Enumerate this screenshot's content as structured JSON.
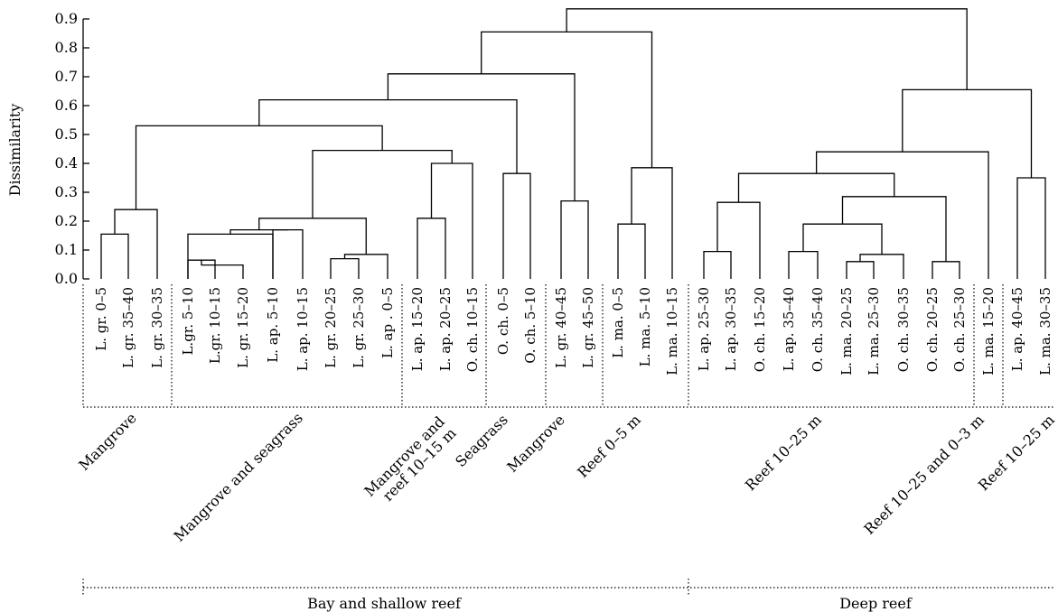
{
  "chart_data": {
    "type": "dendrogram",
    "title": "",
    "xlabel": "",
    "ylabel": "Dissimilarity",
    "ylim": [
      0,
      0.9
    ],
    "yticks": [
      "0.0",
      "0.1",
      "0.2",
      "0.3",
      "0.4",
      "0.5",
      "0.6",
      "0.7",
      "0.8",
      "0.9"
    ],
    "leaves": [
      "L. gr. 0–5",
      "L. gr. 35–40",
      "L. gr. 30–35",
      "L.gr. 5–10",
      "L.gr. 10–15",
      "L. gr. 15–20",
      "L. ap. 5–10",
      "L. ap. 10–15",
      "L. gr. 20–25",
      "L. gr. 25–30",
      "L. ap . 0–5",
      "L. ap. 15–20",
      "L. ap. 20–25",
      "O. ch. 10–15",
      "O. ch. 0–5",
      "O. ch. 5–10",
      "L. gr. 40–45",
      "L. gr. 45–50",
      "L. ma. 0–5",
      "L. ma. 5–10",
      "L. ma. 10–15",
      "L. ap. 25–30",
      "L. ap. 30–35",
      "O. ch. 15–20",
      "L. ap. 35–40",
      "O. ch. 35–40",
      "L. ma. 20–25",
      "L. ma. 25–30",
      "O. ch. 30–35",
      "O. ch. 20–25",
      "O. ch. 25–30",
      "L. ma. 15–20",
      "L. ap. 40–45",
      "L. ma. 30–35"
    ],
    "merges": [
      {
        "a": "L3",
        "b": "L4",
        "height": 0.065
      },
      {
        "a": "L5",
        "b": "M0",
        "height": 0.048
      },
      {
        "a": "L8",
        "b": "L9",
        "height": 0.07
      },
      {
        "a": "L10",
        "b": "M2",
        "height": 0.085
      },
      {
        "a": "L26",
        "b": "L27",
        "height": 0.06
      },
      {
        "a": "L29",
        "b": "L30",
        "height": 0.06
      },
      {
        "a": "L28",
        "b": "M4",
        "height": 0.085
      },
      {
        "a": "L21",
        "b": "L22",
        "height": 0.095
      },
      {
        "a": "L24",
        "b": "L25",
        "height": 0.095
      },
      {
        "a": "L0",
        "b": "L1",
        "height": 0.155
      },
      {
        "a": "L3",
        "b": "L6",
        "height": 0.155
      },
      {
        "a": "L6",
        "b": "L7",
        "height": 0.17
      },
      {
        "a": "M10",
        "b": "M11",
        "height": 0.17
      },
      {
        "a": "M12",
        "b": "M3",
        "height": 0.21
      },
      {
        "a": "L11",
        "b": "L12",
        "height": 0.21
      },
      {
        "a": "L18",
        "b": "L19",
        "height": 0.19
      },
      {
        "a": "M8",
        "b": "M6",
        "height": 0.19
      },
      {
        "a": "M9",
        "b": "L2",
        "height": 0.24
      },
      {
        "a": "M7",
        "b": "L23",
        "height": 0.265
      },
      {
        "a": "L16",
        "b": "L17",
        "height": 0.27
      },
      {
        "a": "M16",
        "b": "M5",
        "height": 0.285
      },
      {
        "a": "L32",
        "b": "L33",
        "height": 0.35
      },
      {
        "a": "L14",
        "b": "L15",
        "height": 0.365
      },
      {
        "a": "M18",
        "b": "M20",
        "height": 0.365
      },
      {
        "a": "M14",
        "b": "L13",
        "height": 0.4
      },
      {
        "a": "M15",
        "b": "L20",
        "height": 0.385
      },
      {
        "a": "M13",
        "b": "M24",
        "height": 0.445
      },
      {
        "a": "M23",
        "b": "L31",
        "height": 0.44
      },
      {
        "a": "M17",
        "b": "M26",
        "height": 0.53
      },
      {
        "a": "M28",
        "b": "M22",
        "height": 0.62
      },
      {
        "a": "M27",
        "b": "M21",
        "height": 0.655
      },
      {
        "a": "M29",
        "b": "M19",
        "height": 0.71
      },
      {
        "a": "M31",
        "b": "M25",
        "height": 0.855
      },
      {
        "a": "M32",
        "b": "M30",
        "height": 0.935
      }
    ],
    "groups": [
      {
        "label": "Mangrove",
        "lines": [
          "Mangrove"
        ],
        "leaf_start": 0,
        "leaf_end": 2
      },
      {
        "label": "Mangrove and seagrass",
        "lines": [
          "Mangrove and seagrass"
        ],
        "leaf_start": 3,
        "leaf_end": 10
      },
      {
        "label": "Mangrove and reef 10–15 m",
        "lines": [
          "Mangrove and",
          "reef 10–15 m"
        ],
        "leaf_start": 11,
        "leaf_end": 13
      },
      {
        "label": "Seagrass",
        "lines": [
          "Seagrass"
        ],
        "leaf_start": 14,
        "leaf_end": 15
      },
      {
        "label": "Mangrove",
        "lines": [
          "Mangrove"
        ],
        "leaf_start": 16,
        "leaf_end": 17
      },
      {
        "label": "Reef 0–5 m",
        "lines": [
          "Reef 0–5 m"
        ],
        "leaf_start": 18,
        "leaf_end": 20
      },
      {
        "label": "Reef 10–25 m",
        "lines": [
          "Reef 10–25 m"
        ],
        "leaf_start": 21,
        "leaf_end": 30
      },
      {
        "label": "Reef 10–25 and 0–3 m",
        "lines": [
          "Reef 10–25 and 0–3 m"
        ],
        "leaf_start": 31,
        "leaf_end": 31
      },
      {
        "label": "Reef 10–25 m",
        "lines": [
          "Reef 10–25 m"
        ],
        "leaf_start": 32,
        "leaf_end": 33
      }
    ],
    "regions": [
      {
        "label": "Bay and shallow reef",
        "leaf_start": 0,
        "leaf_end": 20
      },
      {
        "label": "Deep reef",
        "leaf_start": 21,
        "leaf_end": 33
      }
    ]
  }
}
